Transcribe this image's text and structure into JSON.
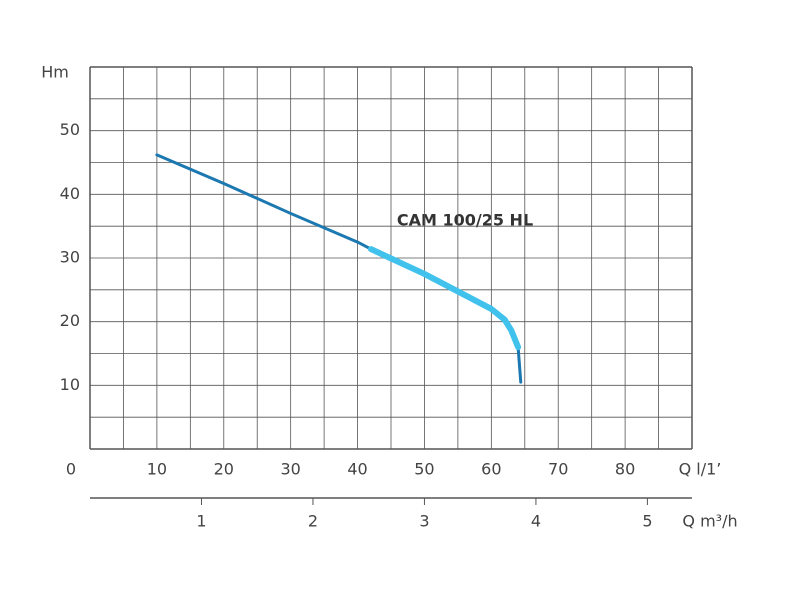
{
  "chart_data": {
    "type": "line",
    "annotation": "CAM 100/25 HL",
    "ylabel": "Hm",
    "xlabel": "Q l/1’",
    "x2label": "Q m³/h",
    "xlim": [
      0,
      90
    ],
    "ylim": [
      0,
      60
    ],
    "x2lim": [
      0,
      5.4
    ],
    "xticks": [
      0,
      10,
      20,
      30,
      40,
      50,
      60,
      70,
      80
    ],
    "yticks": [
      10,
      20,
      30,
      40,
      50
    ],
    "x2ticks": [
      1,
      2,
      3,
      4,
      5
    ],
    "xgrid": [
      0,
      5,
      10,
      15,
      20,
      25,
      30,
      35,
      40,
      45,
      50,
      55,
      60,
      65,
      70,
      75,
      80,
      85,
      90
    ],
    "ygrid": [
      0,
      5,
      10,
      15,
      20,
      25,
      30,
      35,
      40,
      45,
      50,
      55,
      60
    ],
    "grid": true,
    "series": [
      {
        "color": "#1b78b0",
        "x": [
          10,
          20,
          30,
          40,
          42,
          50,
          60,
          62,
          63,
          64,
          64.4
        ],
        "values": [
          46.2,
          41.7,
          37,
          32.5,
          31.4,
          27.5,
          22,
          20.3,
          18.6,
          16,
          10.5
        ]
      },
      {
        "color": "#40c2ec",
        "x": [
          42,
          50,
          60,
          62,
          63,
          64
        ],
        "values": [
          31.4,
          27.5,
          22,
          20.3,
          18.6,
          16
        ]
      }
    ]
  }
}
